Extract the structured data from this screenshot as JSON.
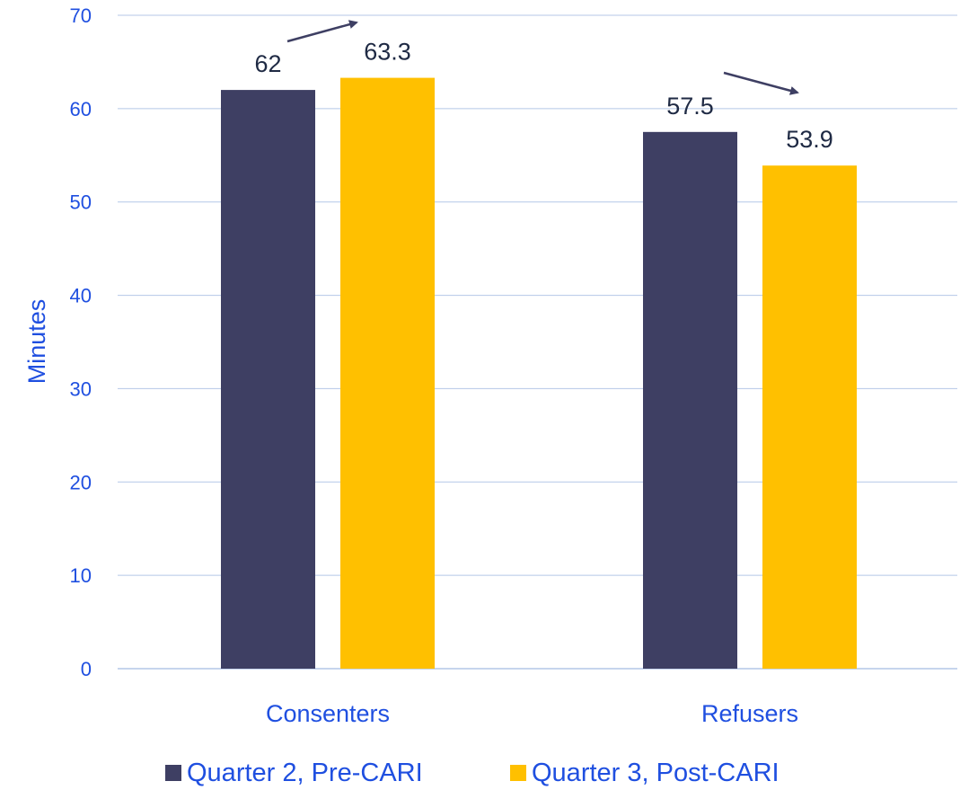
{
  "chart_data": {
    "type": "bar",
    "categories": [
      "Consenters",
      "Refusers"
    ],
    "series": [
      {
        "name": "Quarter 2, Pre-CARI",
        "values": [
          62,
          57.5
        ],
        "color": "#3e3f63"
      },
      {
        "name": "Quarter 3, Post-CARI",
        "values": [
          63.3,
          53.9
        ],
        "color": "#ffc000"
      }
    ],
    "data_labels": [
      [
        "62",
        "57.5"
      ],
      [
        "63.3",
        "53.9"
      ]
    ],
    "ylabel": "Minutes",
    "ylim": [
      0,
      70
    ],
    "yticks": [
      "0",
      "10",
      "20",
      "30",
      "40",
      "50",
      "60",
      "70"
    ],
    "grid": "horizontal",
    "legend_position": "bottom",
    "annotations": [
      "arrow-up-consenters",
      "arrow-down-refusers"
    ],
    "colors": {
      "axis_text": "#1f4fe0",
      "data_label": "#1f2a44",
      "gridline": "#b4c7e7",
      "arrow": "#3e3f63"
    }
  }
}
